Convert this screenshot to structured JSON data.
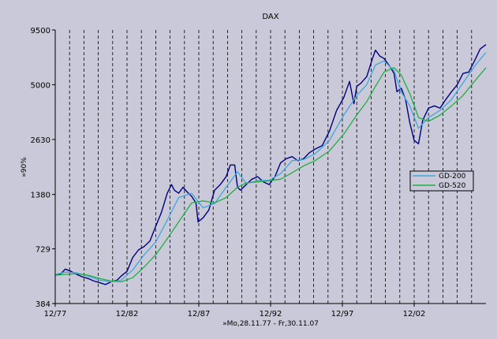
{
  "chart_data": {
    "type": "line",
    "title": "DAX",
    "xlabel": "»Mo,28.11.77 - Fr,30.11.07",
    "ylabel": "»90%",
    "y_scale": "log",
    "ylim": [
      384,
      9500
    ],
    "xlim": [
      1977.9,
      2007.9
    ],
    "y_ticks": [
      {
        "value": 384,
        "label": "384"
      },
      {
        "value": 729,
        "label": "729"
      },
      {
        "value": 1380,
        "label": "1380"
      },
      {
        "value": 2630,
        "label": "2630"
      },
      {
        "value": 5000,
        "label": "5000"
      },
      {
        "value": 9500,
        "label": "9500"
      }
    ],
    "x_ticks": [
      {
        "value": 1977.9,
        "label": "12/77"
      },
      {
        "value": 1982.9,
        "label": "12/82"
      },
      {
        "value": 1987.9,
        "label": "12/87"
      },
      {
        "value": 1992.9,
        "label": "12/92"
      },
      {
        "value": 1997.9,
        "label": "12/97"
      },
      {
        "value": 2002.9,
        "label": "12/02"
      }
    ],
    "vertical_dashed_grid_years": [
      1978.9,
      1979.9,
      1980.9,
      1981.9,
      1982.9,
      1983.9,
      1984.9,
      1985.9,
      1986.9,
      1987.9,
      1988.9,
      1989.9,
      1990.9,
      1991.9,
      1992.9,
      1993.9,
      1994.9,
      1995.9,
      1996.9,
      1997.9,
      1998.9,
      1999.9,
      2000.9,
      2001.9,
      2002.9,
      2003.9,
      2004.9,
      2005.9,
      2006.9
    ],
    "series": [
      {
        "name": "DAX",
        "color": "#00007f",
        "x": [
          1977.9,
          1978.3,
          1978.6,
          1979.0,
          1979.4,
          1979.8,
          1980.2,
          1980.6,
          1981.0,
          1981.4,
          1981.8,
          1982.2,
          1982.5,
          1982.9,
          1983.3,
          1983.7,
          1984.1,
          1984.5,
          1984.9,
          1985.3,
          1985.7,
          1986.0,
          1986.2,
          1986.5,
          1986.8,
          1987.1,
          1987.4,
          1987.7,
          1987.85,
          1988.2,
          1988.6,
          1989.0,
          1989.4,
          1989.8,
          1990.1,
          1990.4,
          1990.6,
          1990.8,
          1991.2,
          1991.6,
          1992.0,
          1992.4,
          1992.8,
          1993.2,
          1993.6,
          1994.0,
          1994.4,
          1994.8,
          1995.2,
          1995.6,
          1996.0,
          1996.5,
          1997.0,
          1997.5,
          1998.0,
          1998.4,
          1998.7,
          1998.9,
          1999.2,
          1999.6,
          2000.0,
          2000.2,
          2000.5,
          2000.8,
          2001.2,
          2001.5,
          2001.7,
          2002.0,
          2002.3,
          2002.6,
          2002.9,
          2003.2,
          2003.5,
          2003.9,
          2004.3,
          2004.7,
          2005.1,
          2005.5,
          2005.9,
          2006.3,
          2006.7,
          2007.1,
          2007.5,
          2007.9
        ],
        "values": [
          535,
          545,
          575,
          560,
          540,
          525,
          515,
          500,
          490,
          480,
          495,
          505,
          530,
          560,
          660,
          720,
          750,
          800,
          950,
          1120,
          1400,
          1550,
          1450,
          1400,
          1500,
          1420,
          1350,
          1250,
          1000,
          1050,
          1150,
          1450,
          1550,
          1700,
          1950,
          1950,
          1500,
          1450,
          1550,
          1650,
          1700,
          1600,
          1550,
          1700,
          2000,
          2100,
          2150,
          2050,
          2100,
          2250,
          2350,
          2450,
          2900,
          3700,
          4300,
          5200,
          4000,
          4900,
          5100,
          5500,
          6800,
          7500,
          7000,
          6800,
          6200,
          5700,
          4600,
          4800,
          4200,
          3200,
          2600,
          2500,
          3300,
          3800,
          3900,
          3800,
          4200,
          4600,
          5000,
          5700,
          5800,
          6600,
          7600,
          8000
        ]
      },
      {
        "name": "GD-200",
        "color": "#3fa8dc",
        "x": [
          1977.9,
          1978.6,
          1979.4,
          1980.2,
          1981.0,
          1981.8,
          1982.5,
          1983.3,
          1984.1,
          1984.9,
          1985.7,
          1986.5,
          1987.4,
          1988.2,
          1989.0,
          1989.8,
          1990.6,
          1991.2,
          1992.0,
          1992.8,
          1993.6,
          1994.4,
          1995.2,
          1996.0,
          1997.0,
          1998.0,
          1998.9,
          1999.6,
          2000.2,
          2000.8,
          2001.5,
          2002.0,
          2002.6,
          2003.2,
          2003.9,
          2004.7,
          2005.5,
          2006.3,
          2007.1,
          2007.9
        ],
        "values": [
          540,
          555,
          550,
          530,
          505,
          495,
          505,
          570,
          680,
          790,
          1020,
          1330,
          1400,
          1180,
          1240,
          1500,
          1800,
          1570,
          1620,
          1630,
          1760,
          2050,
          2080,
          2220,
          2600,
          3500,
          4400,
          5000,
          6300,
          6600,
          5900,
          4600,
          3900,
          3000,
          3400,
          3700,
          4200,
          5100,
          6200,
          7300
        ]
      },
      {
        "name": "GD-520",
        "color": "#20b040",
        "x": [
          1977.9,
          1978.6,
          1979.4,
          1980.2,
          1981.0,
          1981.8,
          1982.5,
          1983.3,
          1984.1,
          1984.9,
          1985.7,
          1986.5,
          1987.4,
          1988.2,
          1989.0,
          1989.8,
          1990.6,
          1991.2,
          1992.0,
          1992.8,
          1993.6,
          1994.4,
          1995.2,
          1996.0,
          1997.0,
          1998.0,
          1998.9,
          1999.6,
          2000.2,
          2000.8,
          2001.5,
          2002.0,
          2002.6,
          2003.2,
          2003.9,
          2004.7,
          2005.5,
          2006.3,
          2007.1,
          2007.9
        ],
        "values": [
          535,
          540,
          545,
          535,
          515,
          500,
          495,
          520,
          590,
          680,
          820,
          1000,
          1250,
          1280,
          1250,
          1330,
          1500,
          1580,
          1600,
          1620,
          1650,
          1780,
          1930,
          2050,
          2300,
          2800,
          3500,
          4100,
          4900,
          5800,
          6100,
          5600,
          4500,
          3400,
          3250,
          3500,
          3900,
          4400,
          5200,
          6100
        ]
      }
    ],
    "legend": {
      "placement": "right-middle",
      "entries": [
        {
          "label": "GD-200",
          "color": "#3fa8dc"
        },
        {
          "label": "GD-520",
          "color": "#20b040"
        }
      ]
    },
    "plot_background": "#c9c9d9"
  }
}
